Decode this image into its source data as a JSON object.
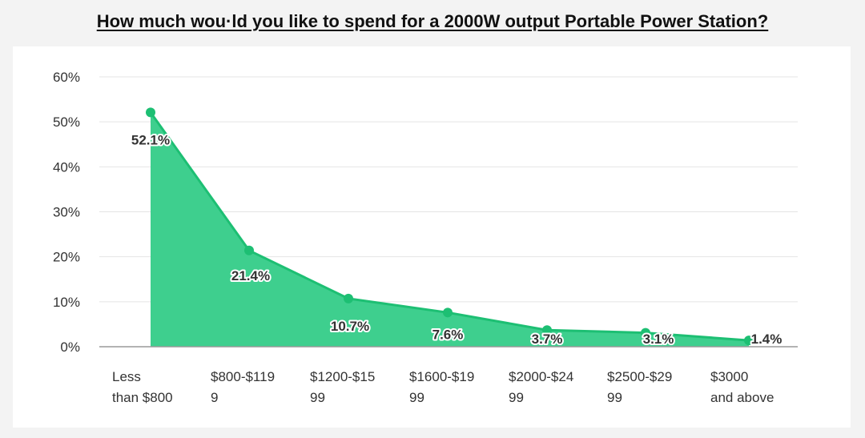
{
  "title": "How much wou·ld you like to spend for a 2000W output Portable Power Station?",
  "chart_data": {
    "type": "area",
    "title": "How much wou·ld you like to spend for a 2000W output Portable Power Station?",
    "categories": [
      [
        "Less",
        "than $800"
      ],
      [
        "$800-$119",
        "9"
      ],
      [
        "$1200-$15",
        "99"
      ],
      [
        "$1600-$19",
        "99"
      ],
      [
        "$2000-$24",
        "99"
      ],
      [
        "$2500-$29",
        "99"
      ],
      [
        "$3000",
        "and above"
      ]
    ],
    "values": [
      52.1,
      21.4,
      10.7,
      7.6,
      3.7,
      3.1,
      1.4
    ],
    "labels": [
      "52.1%",
      "21.4%",
      "10.7%",
      "7.6%",
      "3.7%",
      "3.1%",
      "1.4%"
    ],
    "ylim": [
      0,
      60
    ],
    "yticks": [
      "0%",
      "10%",
      "20%",
      "30%",
      "40%",
      "50%",
      "60%"
    ],
    "ytick_values": [
      0,
      10,
      20,
      30,
      40,
      50,
      60
    ],
    "xlabel": "",
    "ylabel": "",
    "grid": true,
    "colors": {
      "fill": "#3ecf8e",
      "line": "#1dbf73",
      "marker": "#1dbf73",
      "grid": "#e4e4e4",
      "axis": "#9a9a9a"
    }
  }
}
